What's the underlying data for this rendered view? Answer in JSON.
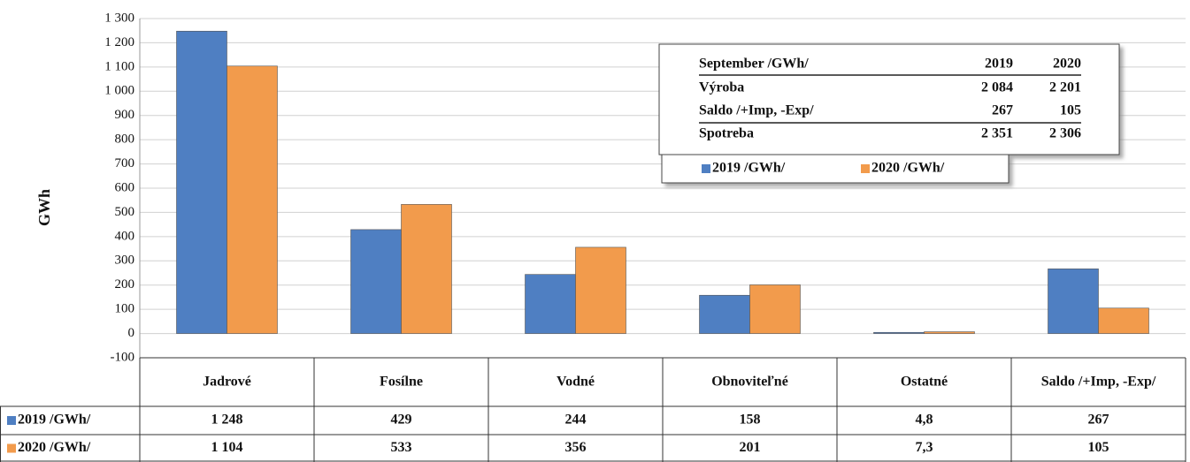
{
  "chart_data": {
    "type": "bar",
    "y_label": "GWh",
    "categories": [
      "Jadrové",
      "Fosílne",
      "Vodné",
      "Obnoviteľné",
      "Ostatné",
      "Saldo /+Imp, -Exp/"
    ],
    "series": [
      {
        "name": "2019 /GWh/",
        "color": "#4f7fc2",
        "values": [
          1248,
          429,
          244,
          158,
          4.8,
          267
        ],
        "value_labels": [
          "1 248",
          "429",
          "244",
          "158",
          "4,8",
          "267"
        ]
      },
      {
        "name": "2020 /GWh/",
        "color": "#f29b4c",
        "values": [
          1104,
          533,
          356,
          201,
          7.3,
          105
        ],
        "value_labels": [
          "1 104",
          "533",
          "356",
          "201",
          "7,3",
          "105"
        ]
      }
    ],
    "ylim": [
      -100,
      1300
    ],
    "yticks": [
      -100,
      0,
      100,
      200,
      300,
      400,
      500,
      600,
      700,
      800,
      900,
      {
        "value": 1000,
        "label": "1 000"
      },
      {
        "value": 1100,
        "label": "1 100"
      },
      {
        "value": 1200,
        "label": "1 200"
      },
      {
        "value": 1300,
        "label": "1 300"
      }
    ],
    "grid": true,
    "inset_table": {
      "columns": [
        "September /GWh/",
        "2019",
        "2020"
      ],
      "rows": [
        [
          "Výroba",
          "2 084",
          "2 201"
        ],
        [
          "Saldo /+Imp, -Exp/",
          "267",
          "105"
        ],
        [
          "Spotreba",
          "2 351",
          "2 306"
        ]
      ]
    }
  }
}
